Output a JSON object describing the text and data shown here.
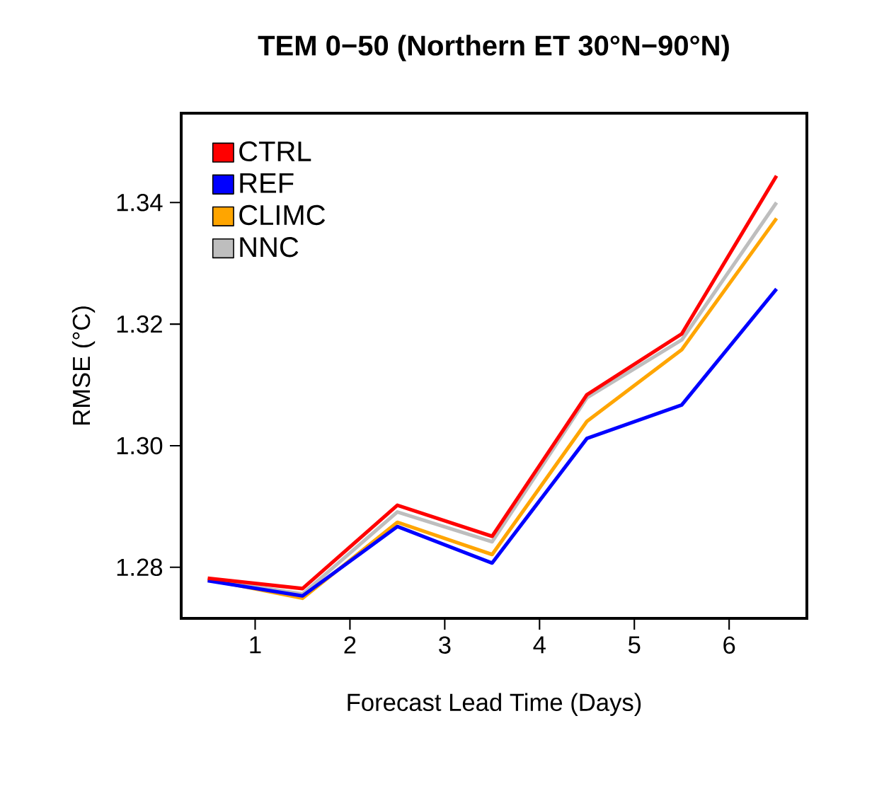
{
  "chart_data": {
    "type": "line",
    "title": "TEM 0−50 (Northern ET 30°N−90°N)",
    "xlabel": "Forecast Lead Time (Days)",
    "ylabel": "RMSE (°C)",
    "x": [
      0.5,
      1.5,
      2.5,
      3.5,
      4.5,
      5.5,
      6.5
    ],
    "series": [
      {
        "name": "CTRL",
        "color": "#ff0000",
        "values": [
          1.2782,
          1.2765,
          1.2902,
          1.2851,
          1.3084,
          1.3184,
          1.3444
        ]
      },
      {
        "name": "REF",
        "color": "#0000ff",
        "values": [
          1.2778,
          1.2753,
          1.2867,
          1.2807,
          1.3012,
          1.3067,
          1.3258
        ]
      },
      {
        "name": "CLIMC",
        "color": "#ffa500",
        "values": [
          1.278,
          1.2749,
          1.2874,
          1.2821,
          1.304,
          1.3158,
          1.3374
        ]
      },
      {
        "name": "NNC",
        "color": "#bebebe",
        "values": [
          1.278,
          1.2756,
          1.2891,
          1.2842,
          1.3079,
          1.3174,
          1.34
        ]
      }
    ],
    "xlim": [
      0.22,
      6.82
    ],
    "ylim": [
      1.2716,
      1.3547
    ],
    "xticks": [
      1,
      2,
      3,
      4,
      5,
      6
    ],
    "yticks": [
      {
        "value": 1.28,
        "label": "1.28"
      },
      {
        "value": 1.3,
        "label": "1.30"
      },
      {
        "value": 1.32,
        "label": "1.32"
      },
      {
        "value": 1.34,
        "label": "1.34"
      }
    ],
    "grid": false,
    "legend": "top left",
    "marker": "none",
    "line_style": "solid"
  }
}
